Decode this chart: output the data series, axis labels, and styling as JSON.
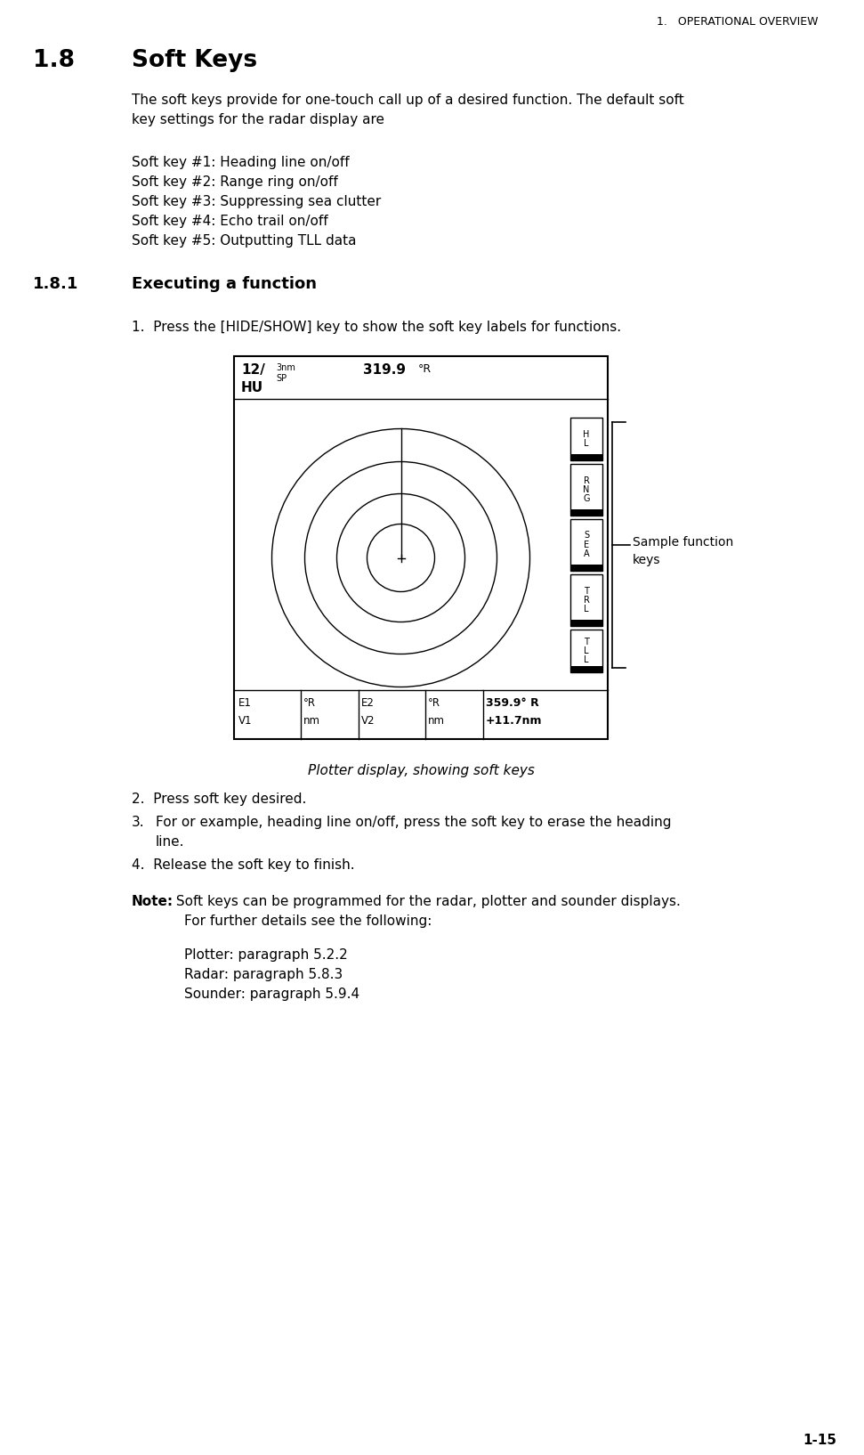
{
  "page_header": "1.   OPERATIONAL OVERVIEW",
  "section_num": "1.8",
  "section_title": "Soft Keys",
  "para_line1": "The soft keys provide for one-touch call up of a desired function. The default soft",
  "para_line2": "key settings for the radar display are",
  "softkey_lines": [
    "Soft key #1: Heading line on/off",
    "Soft key #2: Range ring on/off",
    "Soft key #3: Suppressing sea clutter",
    "Soft key #4: Echo trail on/off",
    "Soft key #5: Outputting TLL data"
  ],
  "subsection_num": "1.8.1",
  "subsection_title": "Executing a function",
  "step1": "1.  Press the [HIDE/SHOW] key to show the soft key labels for functions.",
  "fig_caption": "Plotter display, showing soft keys",
  "step2": "2.  Press soft key desired.",
  "step3_num": "3.",
  "step3_text": "For or example, heading line on/off, press the soft key to erase the heading",
  "step3_cont": "line.",
  "step4": "4.  Release the soft key to finish.",
  "note_bold": "Note:",
  "note_rest": " Soft keys can be programmed for the radar, plotter and sounder displays.",
  "note_line2": "For further details see the following:",
  "note_lines": [
    "Plotter: paragraph 5.2.2",
    "Radar: paragraph 5.8.3",
    "Sounder: paragraph 5.9.4"
  ],
  "page_num": "1-15",
  "bg_color": "#ffffff",
  "softkey_labels": [
    "H\nL",
    "R\nN\nG",
    "S\nE\nA",
    "T\nR\nL",
    "T\nL\nL"
  ],
  "sample_annotation": "Sample function\nkeys"
}
